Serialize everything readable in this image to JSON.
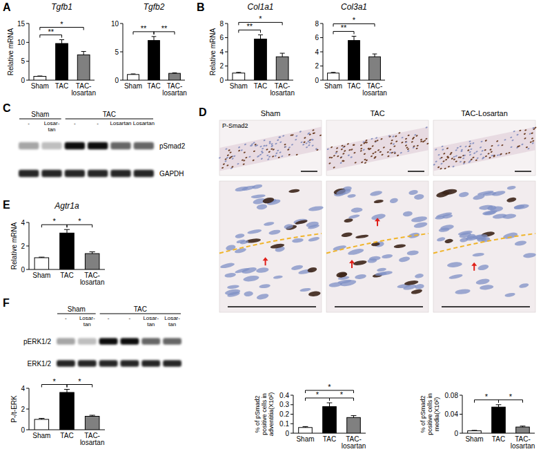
{
  "panel_labels": [
    "A",
    "B",
    "C",
    "D",
    "E",
    "F"
  ],
  "chart_data": [
    {
      "type": "bar",
      "title": "Tgfb1",
      "y_label": "Relative mRNA",
      "categories": [
        "Sham",
        "TAC",
        "TAC-losartan"
      ],
      "values": [
        1,
        9.7,
        6.7
      ],
      "errors": [
        0.1,
        1.0,
        0.9
      ],
      "colors": [
        "#ffffff",
        "#000000",
        "#808080"
      ],
      "ylim": [
        0,
        15
      ],
      "yticks": [
        0,
        5,
        10,
        15
      ],
      "brackets": [
        {
          "between": [
            "Sham",
            "TAC"
          ],
          "label": "**"
        },
        {
          "between": [
            "Sham",
            "TAC-losartan"
          ],
          "label": "*"
        }
      ]
    },
    {
      "type": "bar",
      "title": "Tgfb2",
      "categories": [
        "Sham",
        "TAC",
        "TAC-losartan"
      ],
      "values": [
        1,
        7.0,
        1.2
      ],
      "errors": [
        0.1,
        0.7,
        0.1
      ],
      "colors": [
        "#ffffff",
        "#000000",
        "#808080"
      ],
      "ylim": [
        0,
        10
      ],
      "yticks": [
        0,
        5,
        10
      ],
      "brackets": [
        {
          "between": [
            "Sham",
            "TAC"
          ],
          "label": "**"
        },
        {
          "between": [
            "TAC",
            "TAC-losartan"
          ],
          "label": "**"
        }
      ]
    },
    {
      "type": "bar",
      "title": "Col1a1",
      "y_label": "Relative mRNA",
      "categories": [
        "Sham",
        "TAC",
        "TAC-losartan"
      ],
      "values": [
        1,
        5.8,
        3.3
      ],
      "errors": [
        0.1,
        0.6,
        0.5
      ],
      "colors": [
        "#ffffff",
        "#000000",
        "#808080"
      ],
      "ylim": [
        0,
        8
      ],
      "yticks": [
        0,
        2,
        4,
        6,
        8
      ],
      "brackets": [
        {
          "between": [
            "Sham",
            "TAC"
          ],
          "label": "**"
        },
        {
          "between": [
            "Sham",
            "TAC-losartan"
          ],
          "label": "*"
        }
      ]
    },
    {
      "type": "bar",
      "title": "Col3a1",
      "categories": [
        "Sham",
        "TAC",
        "TAC-losartan"
      ],
      "values": [
        1,
        5.6,
        3.3
      ],
      "errors": [
        0.1,
        0.6,
        0.4
      ],
      "colors": [
        "#ffffff",
        "#000000",
        "#808080"
      ],
      "ylim": [
        0,
        8
      ],
      "yticks": [
        0,
        2,
        4,
        6,
        8
      ],
      "brackets": [
        {
          "between": [
            "Sham",
            "TAC"
          ],
          "label": "**"
        },
        {
          "between": [
            "Sham",
            "TAC-losartan"
          ],
          "label": "*"
        }
      ]
    },
    {
      "type": "bar",
      "title": "Agtr1a",
      "y_label": "Relative mRNA",
      "categories": [
        "Sham",
        "TAC",
        "TAC-losartan"
      ],
      "values": [
        1,
        3.1,
        1.35
      ],
      "errors": [
        0.05,
        0.3,
        0.15
      ],
      "colors": [
        "#ffffff",
        "#000000",
        "#808080"
      ],
      "ylim": [
        0,
        4
      ],
      "yticks": [
        0,
        2,
        4
      ],
      "brackets": [
        {
          "between": [
            "Sham",
            "TAC"
          ],
          "label": "*"
        },
        {
          "between": [
            "TAC",
            "TAC-losartan"
          ],
          "label": "*"
        }
      ]
    },
    {
      "type": "bar",
      "y_label": "P-/t-ERK",
      "categories": [
        "Sham",
        "TAC",
        "TAC-losartan"
      ],
      "values": [
        1,
        3.6,
        1.3
      ],
      "errors": [
        0.1,
        0.3,
        0.1
      ],
      "colors": [
        "#ffffff",
        "#000000",
        "#808080"
      ],
      "ylim": [
        0,
        4
      ],
      "yticks": [
        0,
        2,
        4
      ],
      "brackets": [
        {
          "between": [
            "Sham",
            "TAC"
          ],
          "label": "*"
        },
        {
          "between": [
            "TAC",
            "TAC-losartan"
          ],
          "label": "*"
        }
      ]
    },
    {
      "type": "bar",
      "y_label": "% of pSmad2 positive cells in adventitia(X10²)",
      "categories": [
        "Sham",
        "TAC",
        "TAC-losartan"
      ],
      "values": [
        0.06,
        0.28,
        0.165
      ],
      "errors": [
        0.01,
        0.04,
        0.02
      ],
      "colors": [
        "#ffffff",
        "#000000",
        "#808080"
      ],
      "ylim": [
        0,
        0.4
      ],
      "yticks": [
        0,
        0.1,
        0.2,
        0.3,
        0.4
      ],
      "brackets": [
        {
          "between": [
            "Sham",
            "TAC"
          ],
          "label": "*"
        },
        {
          "between": [
            "TAC",
            "TAC-losartan"
          ],
          "label": "*"
        },
        {
          "between": [
            "Sham",
            "TAC-losartan"
          ],
          "label": "*"
        }
      ]
    },
    {
      "type": "bar",
      "y_label": "% of pSmad2 positive cells in media(X10²)",
      "categories": [
        "Sham",
        "TAC",
        "TAC-losartan"
      ],
      "values": [
        0.005,
        0.055,
        0.013
      ],
      "errors": [
        0.001,
        0.005,
        0.002
      ],
      "colors": [
        "#ffffff",
        "#000000",
        "#808080"
      ],
      "ylim": [
        0,
        0.08
      ],
      "yticks": [
        0,
        0.04,
        0.08
      ],
      "brackets": [
        {
          "between": [
            "Sham",
            "TAC"
          ],
          "label": "*"
        },
        {
          "between": [
            "TAC",
            "TAC-losartan"
          ],
          "label": "*"
        }
      ]
    }
  ],
  "blots": [
    {
      "groups": [
        {
          "label": "Sham",
          "lanes": [
            "-",
            "Losar-tan"
          ]
        },
        {
          "label": "TAC",
          "lanes": [
            "-",
            "-",
            "Losartan",
            "Losartan"
          ]
        }
      ],
      "rows": [
        "pSmad2",
        "GAPDH"
      ]
    },
    {
      "groups": [
        {
          "label": "Sham",
          "lanes": [
            "-",
            "Losar-tan"
          ]
        },
        {
          "label": "TAC",
          "lanes": [
            "-",
            "-",
            "Losar-tan",
            "Losar-tan"
          ]
        }
      ],
      "rows": [
        "pERK1/2",
        "ERK1/2"
      ]
    }
  ],
  "micrographs": {
    "columns": [
      "Sham",
      "TAC",
      "TAC-Losartan"
    ],
    "stain": "P-Smad2"
  }
}
